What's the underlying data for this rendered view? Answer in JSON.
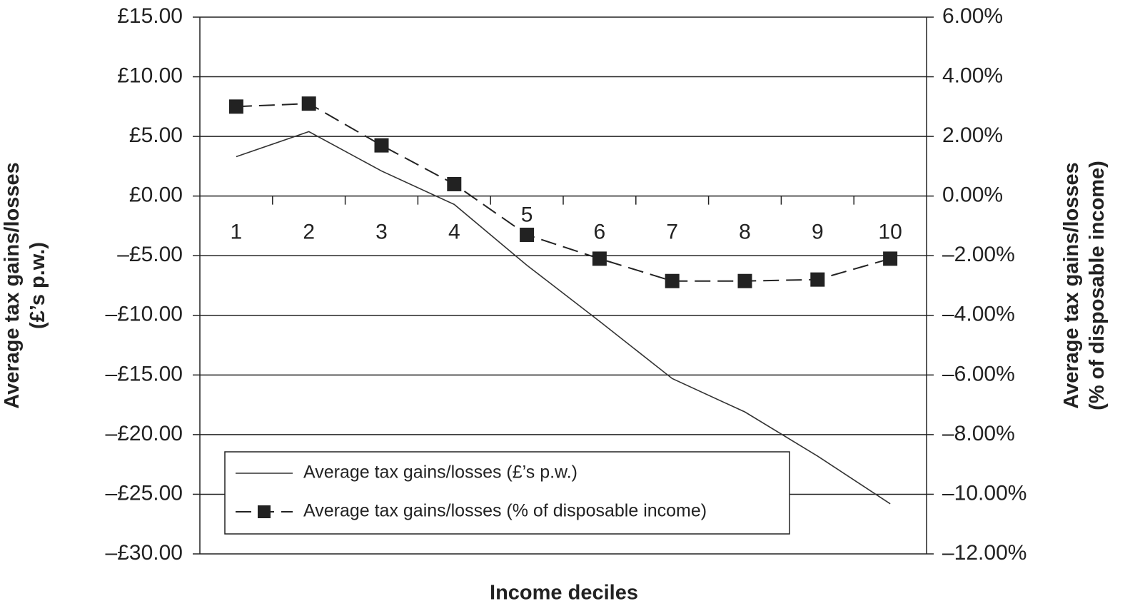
{
  "chart_data": {
    "type": "line",
    "x_label": "Income deciles",
    "y_label": [
      "Average tax gains/losses",
      "(£’s p.w.)"
    ],
    "y2_label": [
      "Average tax gains/losses",
      "(% of disposable income)"
    ],
    "categories": [
      "1",
      "2",
      "3",
      "4",
      "5",
      "6",
      "7",
      "8",
      "9",
      "10"
    ],
    "series": [
      {
        "name": "Average tax gains/losses (£’s p.w.)",
        "color": "#333333",
        "dash": false,
        "marker": "none",
        "values": [
          3.3,
          5.4,
          2.1,
          -0.7,
          -5.8,
          -10.5,
          -15.3,
          -18.1,
          -21.8,
          -25.8
        ]
      },
      {
        "name": "Average tax gains/losses (% of disposable income)",
        "color": "#222222",
        "dash": true,
        "marker": "square",
        "axis": "y2",
        "values": [
          3.0,
          3.1,
          1.7,
          0.4,
          -1.3,
          -2.1,
          -2.85,
          -2.85,
          -2.8,
          -2.1
        ]
      }
    ],
    "ylim": [
      -30,
      15
    ],
    "yticks": [
      {
        "value": 15,
        "label": "£15.00"
      },
      {
        "value": 10,
        "label": "£10.00"
      },
      {
        "value": 5,
        "label": "£5.00"
      },
      {
        "value": 0,
        "label": "£0.00"
      },
      {
        "value": -5,
        "label": "–£5.00"
      },
      {
        "value": -10,
        "label": "–£10.00"
      },
      {
        "value": -15,
        "label": "–£15.00"
      },
      {
        "value": -20,
        "label": "–£20.00"
      },
      {
        "value": -25,
        "label": "–£25.00"
      },
      {
        "value": -30,
        "label": "–£30.00"
      }
    ],
    "y2lim": [
      -12,
      6
    ],
    "y2ticks": [
      {
        "value": 6,
        "label": "6.00%"
      },
      {
        "value": 4,
        "label": "4.00%"
      },
      {
        "value": 2,
        "label": "2.00%"
      },
      {
        "value": 0,
        "label": "0.00%"
      },
      {
        "value": -2,
        "label": "–2.00%"
      },
      {
        "value": -4,
        "label": "–4.00%"
      },
      {
        "value": -6,
        "label": "–6.00%"
      },
      {
        "value": -8,
        "label": "–8.00%"
      },
      {
        "value": -10,
        "label": "–10.00%"
      },
      {
        "value": -12,
        "label": "–12.00%"
      }
    ],
    "grid": true,
    "legend": "lower left"
  }
}
